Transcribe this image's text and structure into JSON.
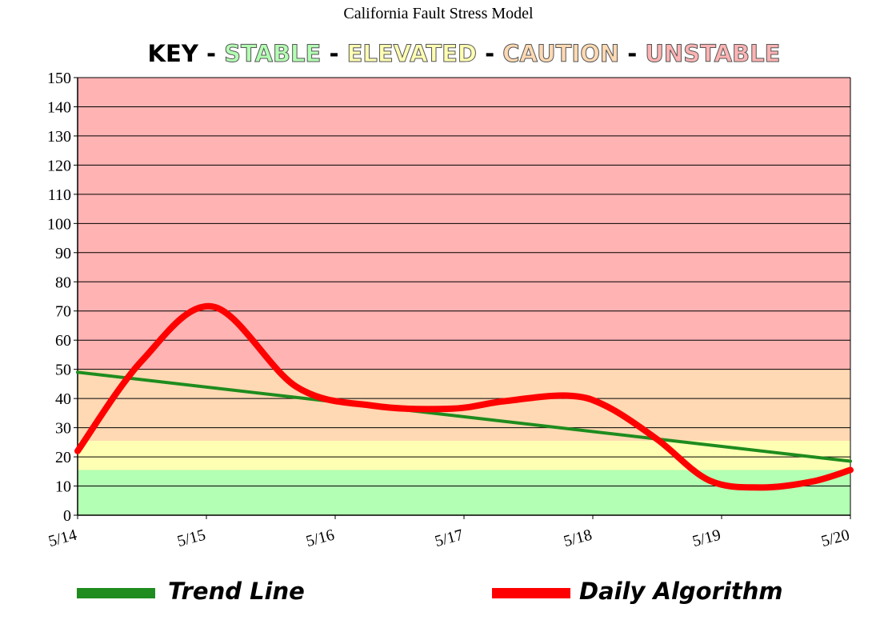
{
  "chart_data": {
    "type": "line",
    "title": "California Fault Stress Model",
    "key": {
      "label": "KEY",
      "separator": "-",
      "zones": [
        {
          "name": "STABLE",
          "range": [
            0,
            15.5
          ],
          "fill": "#b3ffb3",
          "text_color": "#b3ffb3"
        },
        {
          "name": "ELEVATED",
          "range": [
            15.5,
            25.5
          ],
          "fill": "#ffffb3",
          "text_color": "#ffffb3"
        },
        {
          "name": "CAUTION",
          "range": [
            25.5,
            50
          ],
          "fill": "#ffd9b3",
          "text_color": "#ffd9b3"
        },
        {
          "name": "UNSTABLE",
          "range": [
            50,
            150
          ],
          "fill": "#ffb3b3",
          "text_color": "#ffb3b3"
        }
      ]
    },
    "x": [
      "5/14",
      "5/15",
      "5/16",
      "5/17",
      "5/18",
      "5/19",
      "5/20"
    ],
    "ylim": [
      0,
      150
    ],
    "yticks": [
      0,
      10,
      20,
      30,
      40,
      50,
      60,
      70,
      80,
      90,
      100,
      110,
      120,
      130,
      140,
      150
    ],
    "grid": true,
    "series": [
      {
        "name": "Trend Line",
        "color": "#1e8c1e",
        "x": [
          0,
          6
        ],
        "values": [
          49,
          18.5
        ]
      },
      {
        "name": "Daily Algorithm",
        "color": "#ff0000",
        "smooth": true,
        "x": [
          0,
          0.5,
          1.05,
          1.7,
          2.3,
          2.9,
          3.3,
          3.8,
          4.1,
          4.5,
          4.9,
          5.3,
          5.7,
          6.0
        ],
        "values": [
          22,
          53,
          71.5,
          44,
          37.5,
          36.5,
          39,
          41,
          37.5,
          26,
          12,
          9.5,
          11.5,
          15.5
        ]
      }
    ],
    "legend_placement": "bottom"
  }
}
